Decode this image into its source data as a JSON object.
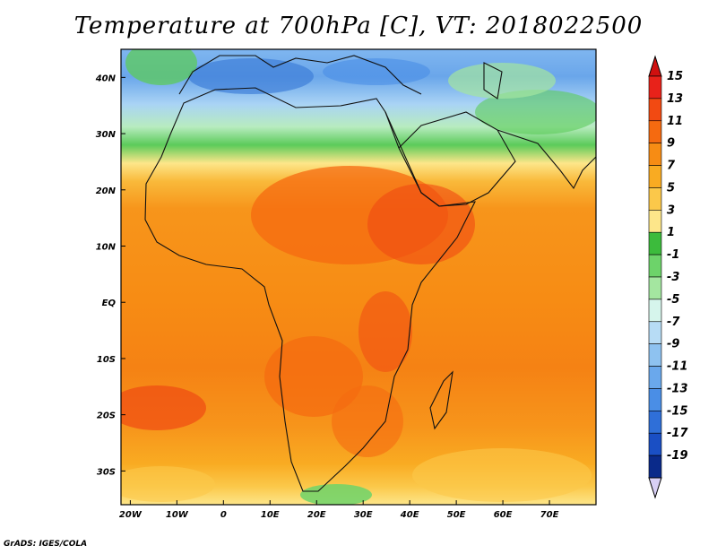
{
  "title": "Temperature at 700hPa [C], VT: 2018022500",
  "credit": "GrADS: IGES/COLA",
  "map": {
    "lat_labels": [
      "40N",
      "30N",
      "20N",
      "10N",
      "EQ",
      "10S",
      "20S",
      "30S"
    ],
    "lat_values": [
      40,
      30,
      20,
      10,
      0,
      -10,
      -20,
      -30
    ],
    "lon_labels": [
      "20W",
      "10W",
      "0",
      "10E",
      "20E",
      "30E",
      "40E",
      "50E",
      "60E",
      "70E"
    ],
    "lon_values": [
      -20,
      -10,
      0,
      10,
      20,
      30,
      40,
      50,
      60,
      70
    ],
    "lon_range": [
      -22,
      80
    ],
    "lat_range": [
      -36,
      45
    ]
  },
  "colorbar": {
    "labels": [
      "15",
      "13",
      "11",
      "9",
      "7",
      "5",
      "3",
      "1",
      "-1",
      "-3",
      "-5",
      "-7",
      "-9",
      "-11",
      "-13",
      "-15",
      "-17",
      "-19"
    ],
    "colors": [
      "#e8221a",
      "#f24a12",
      "#f56a10",
      "#f78c14",
      "#f9ab22",
      "#fbc84a",
      "#fde68a",
      "#3cbb3c",
      "#6dd36a",
      "#a4e6a0",
      "#d6f5ec",
      "#b7dcf5",
      "#8ec2f0",
      "#6aa8ec",
      "#4a8ee6",
      "#2f6fd8",
      "#1a4fc4",
      "#0a2a8a"
    ],
    "top_arrow_color": "#d0100f",
    "bottom_arrow_color": "#d8d0f5"
  }
}
